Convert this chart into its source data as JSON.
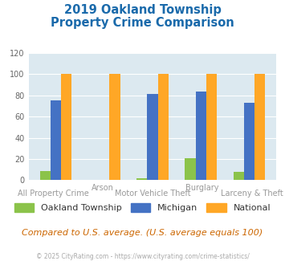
{
  "title_line1": "2019 Oakland Township",
  "title_line2": "Property Crime Comparison",
  "categories": [
    "All Property Crime",
    "Arson",
    "Motor Vehicle Theft",
    "Burglary",
    "Larceny & Theft"
  ],
  "oakland": [
    9,
    0,
    2,
    21,
    8
  ],
  "michigan": [
    75,
    0,
    81,
    84,
    73
  ],
  "national": [
    100,
    100,
    100,
    100,
    100
  ],
  "oakland_color": "#8bc34a",
  "michigan_color": "#4472c4",
  "national_color": "#ffa726",
  "ylim": [
    0,
    120
  ],
  "yticks": [
    0,
    20,
    40,
    60,
    80,
    100,
    120
  ],
  "background_color": "#dce9f0",
  "legend_labels": [
    "Oakland Township",
    "Michigan",
    "National"
  ],
  "note": "Compared to U.S. average. (U.S. average equals 100)",
  "footer": "© 2025 CityRating.com - https://www.cityrating.com/crime-statistics/",
  "top_xlabels": {
    "1": "Arson",
    "3": "Burglary"
  },
  "bottom_xlabels": {
    "0": "All Property Crime",
    "2": "Motor Vehicle Theft",
    "4": "Larceny & Theft"
  }
}
